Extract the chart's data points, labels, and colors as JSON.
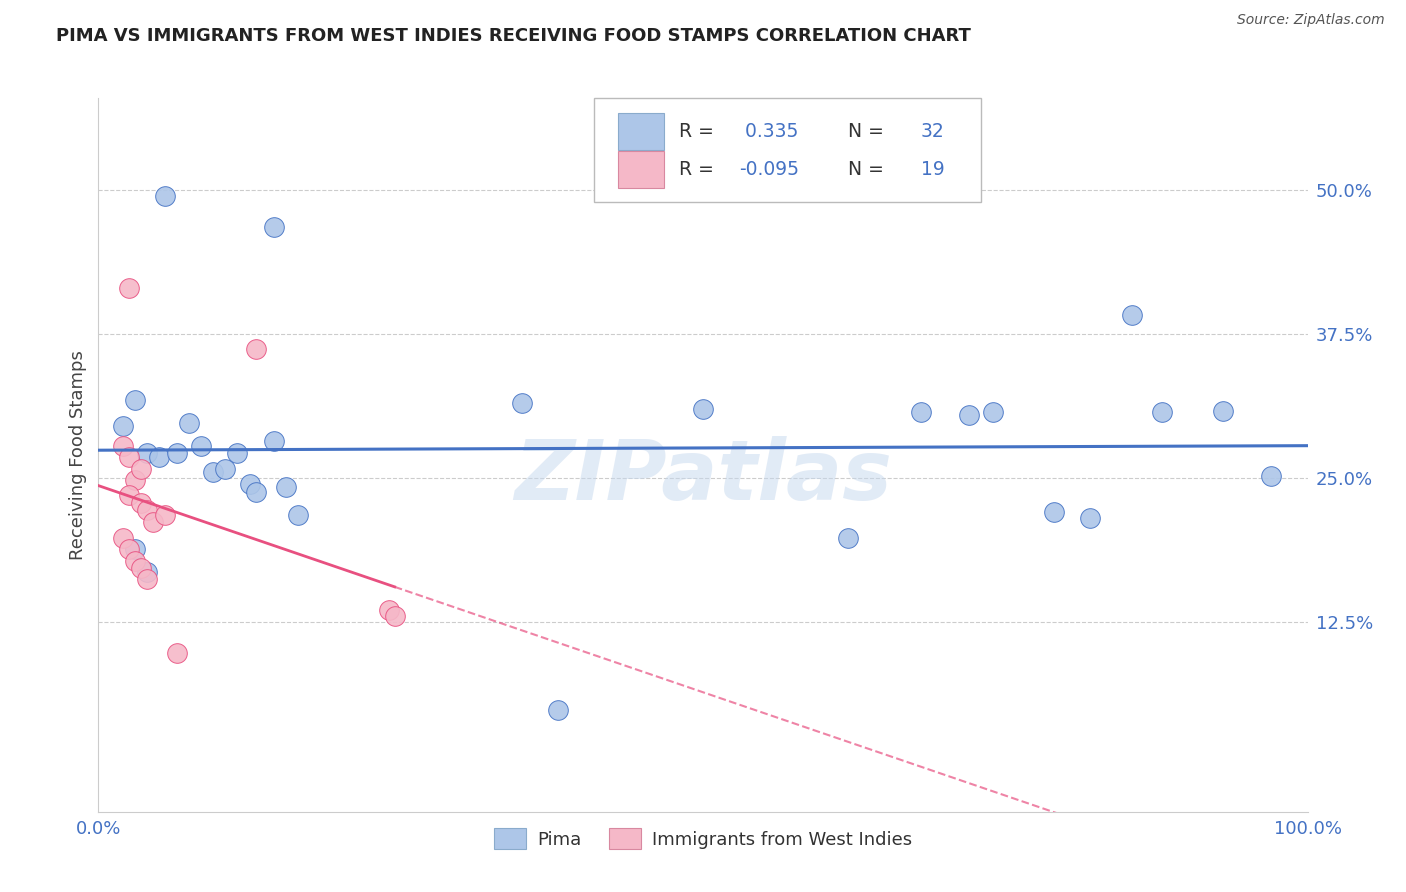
{
  "title": "PIMA VS IMMIGRANTS FROM WEST INDIES RECEIVING FOOD STAMPS CORRELATION CHART",
  "source": "Source: ZipAtlas.com",
  "ylabel": "Receiving Food Stamps",
  "watermark": "ZIPatlas",
  "yticks": [
    "12.5%",
    "25.0%",
    "37.5%",
    "50.0%"
  ],
  "ytick_values": [
    0.125,
    0.25,
    0.375,
    0.5
  ],
  "xlim": [
    0.0,
    1.0
  ],
  "ylim": [
    -0.04,
    0.58
  ],
  "blue_color": "#adc6e8",
  "pink_color": "#f5b8c8",
  "blue_line_color": "#4472c4",
  "pink_line_color": "#e85080",
  "pima_R": 0.335,
  "wi_R": -0.095,
  "pima_N": 32,
  "wi_N": 19,
  "background_color": "#ffffff",
  "grid_color": "#cccccc",
  "pima_x": [
    0.055,
    0.145,
    0.02,
    0.03,
    0.04,
    0.05,
    0.065,
    0.075,
    0.085,
    0.095,
    0.105,
    0.115,
    0.125,
    0.13,
    0.145,
    0.155,
    0.165,
    0.35,
    0.5,
    0.68,
    0.72,
    0.74,
    0.79,
    0.855,
    0.88,
    0.93,
    0.97,
    0.03,
    0.04,
    0.38,
    0.62,
    0.82
  ],
  "pima_y": [
    0.495,
    0.468,
    0.295,
    0.318,
    0.272,
    0.268,
    0.272,
    0.298,
    0.278,
    0.255,
    0.258,
    0.272,
    0.245,
    0.238,
    0.282,
    0.242,
    0.218,
    0.315,
    0.31,
    0.307,
    0.305,
    0.307,
    0.22,
    0.392,
    0.307,
    0.308,
    0.252,
    0.188,
    0.168,
    0.048,
    0.198,
    0.215
  ],
  "wi_x": [
    0.025,
    0.13,
    0.02,
    0.025,
    0.03,
    0.035,
    0.025,
    0.035,
    0.04,
    0.045,
    0.055,
    0.02,
    0.025,
    0.03,
    0.035,
    0.04,
    0.24,
    0.245,
    0.065
  ],
  "wi_y": [
    0.415,
    0.362,
    0.278,
    0.268,
    0.248,
    0.258,
    0.235,
    0.228,
    0.222,
    0.212,
    0.218,
    0.198,
    0.188,
    0.178,
    0.172,
    0.162,
    0.135,
    0.13,
    0.098
  ]
}
